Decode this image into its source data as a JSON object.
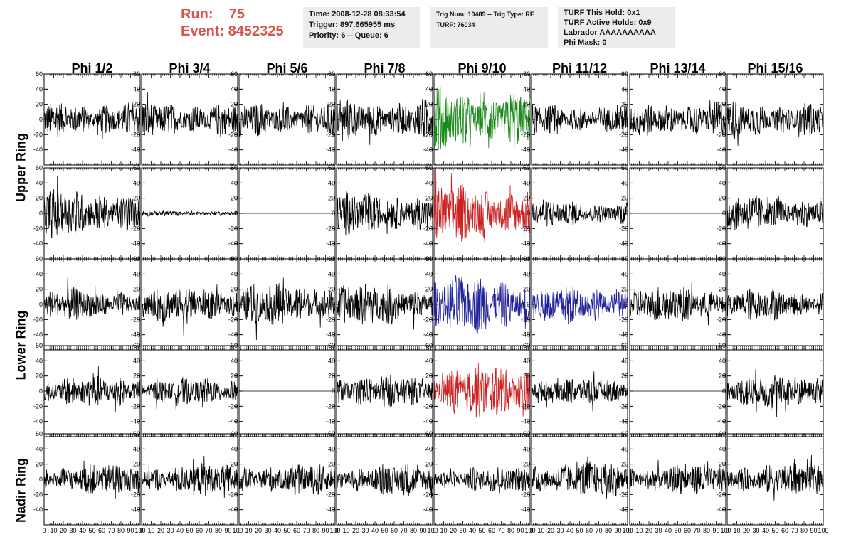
{
  "header": {
    "run_label": "Run:    75",
    "event_label": "Event: 8452325",
    "box1": [
      "Time: 2008-12-28 08:33:54",
      "Trigger: 897.665955 ms",
      "Priority: 6 -- Queue: 6"
    ],
    "box2": [
      "Trig Num: 10489 -- Trig Type: RF",
      "",
      "TURF: 76034"
    ],
    "box3": [
      "TURF This Hold: 0x1",
      "TURF Active Holds: 0x9",
      "Labrador AAAAAAAAAA",
      "Phi Mask: 0"
    ]
  },
  "columns": [
    "Phi 1/2",
    "Phi 3/4",
    "Phi 5/6",
    "Phi 7/8",
    "Phi 9/10",
    "Phi 11/12",
    "Phi 13/14",
    "Phi 15/16"
  ],
  "row_groups": [
    "Upper Ring",
    "Lower Ring",
    "Nadir Ring"
  ],
  "colors": {
    "black": "#000000",
    "green": "#1a8a1a",
    "red": "#cc2222",
    "blue": "#22229a"
  },
  "chart_data": {
    "type": "line",
    "title": "",
    "xlim": [
      0,
      100
    ],
    "ylim": [
      -60,
      60
    ],
    "y_ticks": [
      -40,
      -20,
      0,
      20,
      40,
      60
    ],
    "x_ticks": [
      0,
      10,
      20,
      30,
      40,
      50,
      60,
      70,
      80,
      90,
      100
    ],
    "rows": [
      {
        "amplitudes": [
          14,
          14,
          14,
          16,
          24,
          12,
          14,
          14
        ],
        "colors": [
          "black",
          "black",
          "black",
          "black",
          "green",
          "black",
          "black",
          "black"
        ]
      },
      {
        "amplitudes": [
          18,
          2,
          0,
          16,
          22,
          10,
          0,
          14
        ],
        "colors": [
          "black",
          "black",
          "black",
          "black",
          "red",
          "black",
          "black",
          "black"
        ]
      },
      {
        "amplitudes": [
          12,
          14,
          16,
          16,
          22,
          14,
          14,
          12
        ],
        "colors": [
          "black",
          "black",
          "black",
          "black",
          "blue",
          "blue",
          "black",
          "black"
        ]
      },
      {
        "amplitudes": [
          12,
          10,
          0,
          12,
          20,
          10,
          0,
          14
        ],
        "colors": [
          "black",
          "black",
          "black",
          "black",
          "red",
          "black",
          "black",
          "black"
        ]
      },
      {
        "amplitudes": [
          12,
          12,
          12,
          12,
          10,
          14,
          12,
          12
        ],
        "colors": [
          "black",
          "black",
          "black",
          "black",
          "black",
          "black",
          "black",
          "black"
        ]
      }
    ]
  }
}
